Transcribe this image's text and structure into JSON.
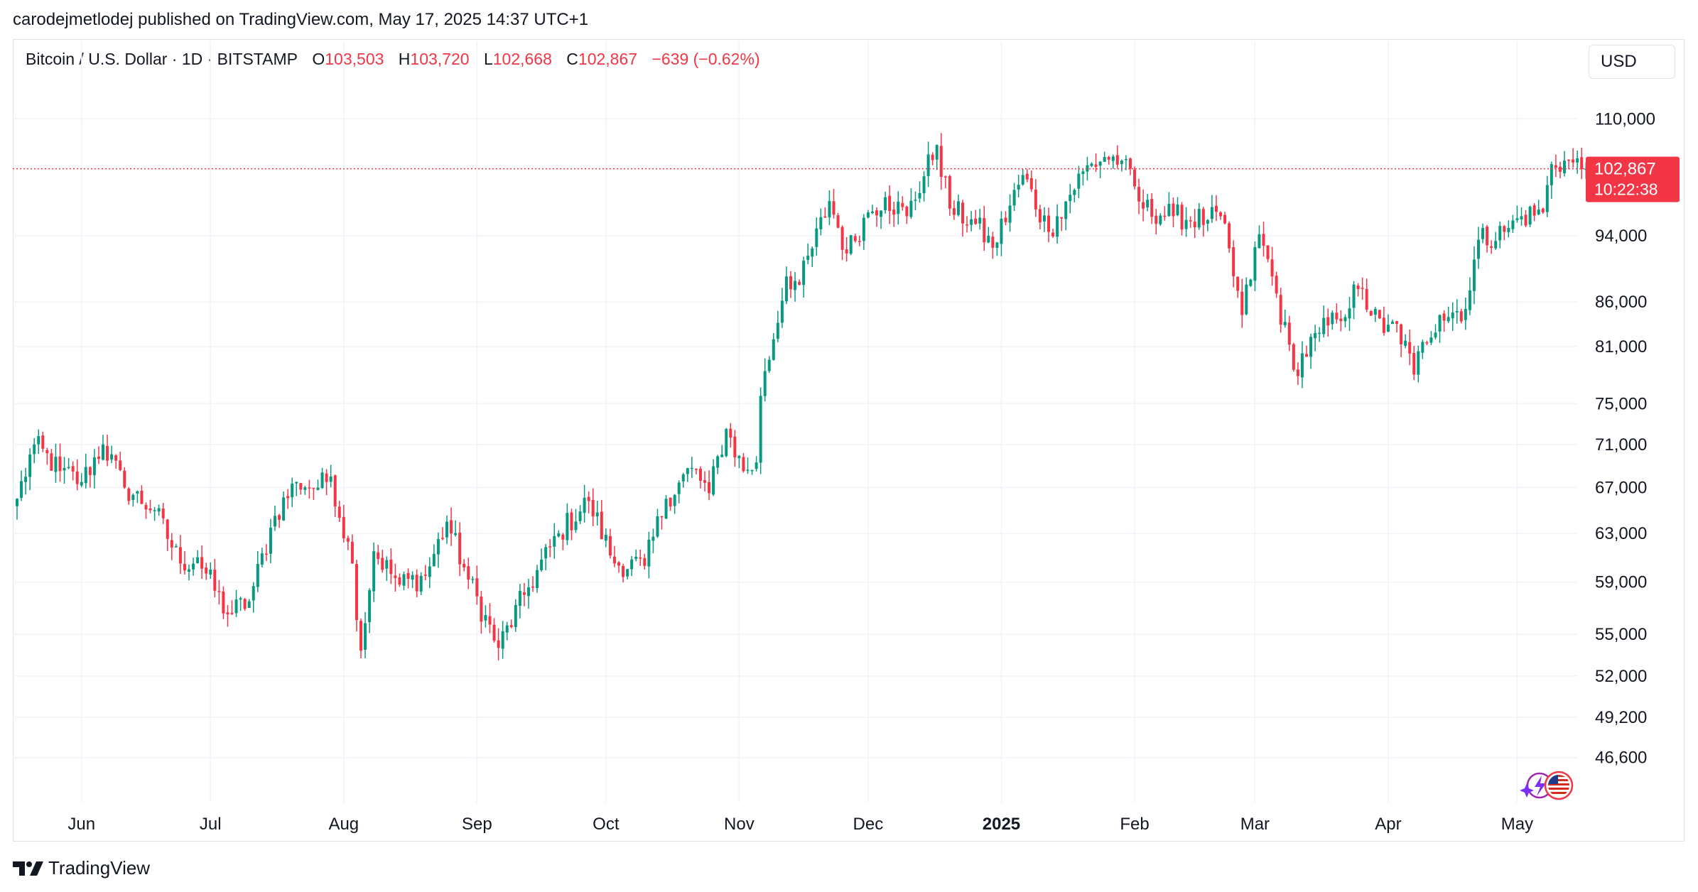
{
  "header": {
    "publisher_line": "carodejmetlodej published on TradingView.com, May 17, 2025 14:37 UTC+1"
  },
  "legend": {
    "symbol": "Bitcoin / U.S. Dollar · 1D · BITSTAMP",
    "open_label": "O",
    "open_value": "103,503",
    "high_label": "H",
    "high_value": "103,720",
    "low_label": "L",
    "low_value": "102,668",
    "close_label": "C",
    "close_value": "102,867",
    "change": "−639 (−0.62%)"
  },
  "currency_button": "USD",
  "price_tag": {
    "price": "102,867",
    "countdown": "10:22:38"
  },
  "brand": "TradingView",
  "colors": {
    "up": "#089981",
    "down": "#f23645",
    "grid": "#f0f3fa",
    "text": "#131722"
  },
  "chart_data": {
    "type": "candlestick",
    "title": "Bitcoin / U.S. Dollar · 1D · BITSTAMP",
    "y_scale": "log",
    "ylim": [
      44500,
      114000
    ],
    "y_ticks": [
      110000,
      94000,
      86000,
      81000,
      75000,
      71000,
      67000,
      63000,
      59000,
      55000,
      52000,
      49200,
      46600
    ],
    "y_tick_labels": [
      "110,000",
      "94,000",
      "86,000",
      "81,000",
      "75,000",
      "71,000",
      "67,000",
      "63,000",
      "59,000",
      "55,000",
      "52,000",
      "49,200",
      "46,600"
    ],
    "x_ticks": [
      {
        "label": "Jun",
        "date": "2024-06-01"
      },
      {
        "label": "Jul",
        "date": "2024-07-01"
      },
      {
        "label": "Aug",
        "date": "2024-08-01"
      },
      {
        "label": "Sep",
        "date": "2024-09-01"
      },
      {
        "label": "Oct",
        "date": "2024-10-01"
      },
      {
        "label": "Nov",
        "date": "2024-11-01"
      },
      {
        "label": "Dec",
        "date": "2024-12-01"
      },
      {
        "label": "2025",
        "date": "2025-01-01",
        "bold": true
      },
      {
        "label": "Feb",
        "date": "2025-02-01"
      },
      {
        "label": "Mar",
        "date": "2025-03-01"
      },
      {
        "label": "Apr",
        "date": "2025-04-01"
      },
      {
        "label": "May",
        "date": "2025-05-01"
      }
    ],
    "last_price": 102867,
    "price_path": [
      [
        "2024-05-17",
        66000
      ],
      [
        "2024-05-21",
        71000
      ],
      [
        "2024-05-27",
        68500
      ],
      [
        "2024-06-01",
        67500
      ],
      [
        "2024-06-06",
        71000
      ],
      [
        "2024-06-11",
        67000
      ],
      [
        "2024-06-18",
        65000
      ],
      [
        "2024-06-24",
        60500
      ],
      [
        "2024-06-28",
        61000
      ],
      [
        "2024-07-05",
        56500
      ],
      [
        "2024-07-10",
        57500
      ],
      [
        "2024-07-16",
        64500
      ],
      [
        "2024-07-21",
        67500
      ],
      [
        "2024-07-26",
        67000
      ],
      [
        "2024-07-29",
        68000
      ],
      [
        "2024-08-03",
        60500
      ],
      [
        "2024-08-05",
        53800
      ],
      [
        "2024-08-08",
        61500
      ],
      [
        "2024-08-14",
        58800
      ],
      [
        "2024-08-20",
        59500
      ],
      [
        "2024-08-25",
        64000
      ],
      [
        "2024-08-30",
        59200
      ],
      [
        "2024-09-06",
        54000
      ],
      [
        "2024-09-12",
        58000
      ],
      [
        "2024-09-20",
        63000
      ],
      [
        "2024-09-27",
        65800
      ],
      [
        "2024-10-03",
        60500
      ],
      [
        "2024-10-10",
        60300
      ],
      [
        "2024-10-15",
        66000
      ],
      [
        "2024-10-21",
        68800
      ],
      [
        "2024-10-25",
        66500
      ],
      [
        "2024-10-29",
        72500
      ],
      [
        "2024-11-02",
        68500
      ],
      [
        "2024-11-05",
        69300
      ],
      [
        "2024-11-06",
        75800
      ],
      [
        "2024-11-12",
        89000
      ],
      [
        "2024-11-15",
        88000
      ],
      [
        "2024-11-22",
        98500
      ],
      [
        "2024-11-26",
        91800
      ],
      [
        "2024-12-01",
        97000
      ],
      [
        "2024-12-05",
        99000
      ],
      [
        "2024-12-10",
        96500
      ],
      [
        "2024-12-17",
        106200
      ],
      [
        "2024-12-20",
        97500
      ],
      [
        "2024-12-26",
        95500
      ],
      [
        "2024-12-30",
        92500
      ],
      [
        "2025-01-06",
        102000
      ],
      [
        "2025-01-12",
        94500
      ],
      [
        "2025-01-14",
        96500
      ],
      [
        "2025-01-20",
        102500
      ],
      [
        "2025-01-25",
        104500
      ],
      [
        "2025-01-29",
        104000
      ],
      [
        "2025-02-03",
        97500
      ],
      [
        "2025-02-10",
        96500
      ],
      [
        "2025-02-18",
        96000
      ],
      [
        "2025-02-21",
        96500
      ],
      [
        "2025-02-26",
        84500
      ],
      [
        "2025-03-02",
        94200
      ],
      [
        "2025-03-05",
        89000
      ],
      [
        "2025-03-10",
        78500
      ],
      [
        "2025-03-16",
        82500
      ],
      [
        "2025-03-20",
        84000
      ],
      [
        "2025-03-25",
        87500
      ],
      [
        "2025-03-31",
        82500
      ],
      [
        "2025-04-03",
        83500
      ],
      [
        "2025-04-07",
        78000
      ],
      [
        "2025-04-09",
        81500
      ],
      [
        "2025-04-13",
        84500
      ],
      [
        "2025-04-19",
        85200
      ],
      [
        "2025-04-22",
        93500
      ],
      [
        "2025-04-28",
        94500
      ],
      [
        "2025-05-02",
        96500
      ],
      [
        "2025-05-07",
        97000
      ],
      [
        "2025-05-09",
        103500
      ],
      [
        "2025-05-12",
        104000
      ],
      [
        "2025-05-17",
        102867
      ]
    ]
  }
}
